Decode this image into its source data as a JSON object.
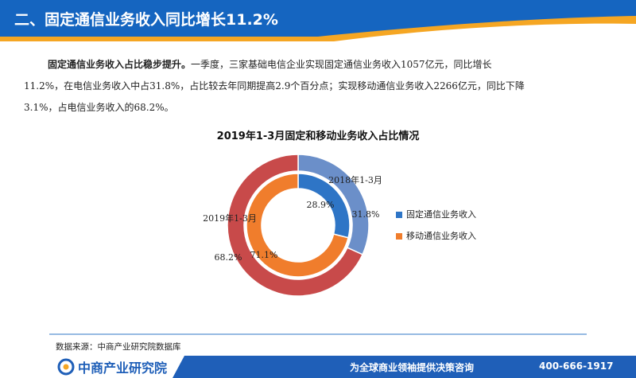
{
  "header": {
    "title": "二、固定通信业务收入同比增长11.2%",
    "bar_color": "#1565c0",
    "accent_color": "#f5a623"
  },
  "paragraph": {
    "lead": "固定通信业务收入占比稳步提升。",
    "line1_rest": "一季度，三家基础电信企业实现固定通信业务收入1057亿元，同比增长",
    "line2": "11.2%，在电信业务收入中占31.8%，占比较去年同期提高2.9个百分点；实现移动通信业务收入2266亿元，同比下降",
    "line3": "3.1%，占电信业务收入的68.2%。"
  },
  "chart_data": {
    "type": "pie",
    "subtype": "nested-donut",
    "title": "2019年1-3月固定和移动业务收入占比情况",
    "categories": [
      "固定通信业务收入",
      "移动通信业务收入"
    ],
    "series": [
      {
        "name": "2018年1-3月",
        "ring": "inner",
        "values": [
          28.9,
          71.1
        ],
        "labels": [
          "28.9%",
          "71.1%"
        ]
      },
      {
        "name": "2019年1-3月",
        "ring": "outer",
        "values": [
          31.8,
          68.2
        ],
        "labels": [
          "31.8%",
          "68.2%"
        ]
      }
    ],
    "colors": {
      "inner": [
        "#2e75c6",
        "#f07d2c"
      ],
      "outer": [
        "#6b8fc9",
        "#c84a4a"
      ]
    },
    "legend": {
      "position": "right",
      "entries": [
        {
          "label": "固定通信业务收入",
          "color": "#2e75c6"
        },
        {
          "label": "移动通信业务收入",
          "color": "#f07d2c"
        }
      ]
    }
  },
  "source": "数据来源：中商产业研究院数据库",
  "footer": {
    "logo_text": "中商产业研究院",
    "slogan": "为全球商业领袖提供决策咨询",
    "phone": "400-666-1917",
    "bar_color": "#1f5fb8"
  }
}
